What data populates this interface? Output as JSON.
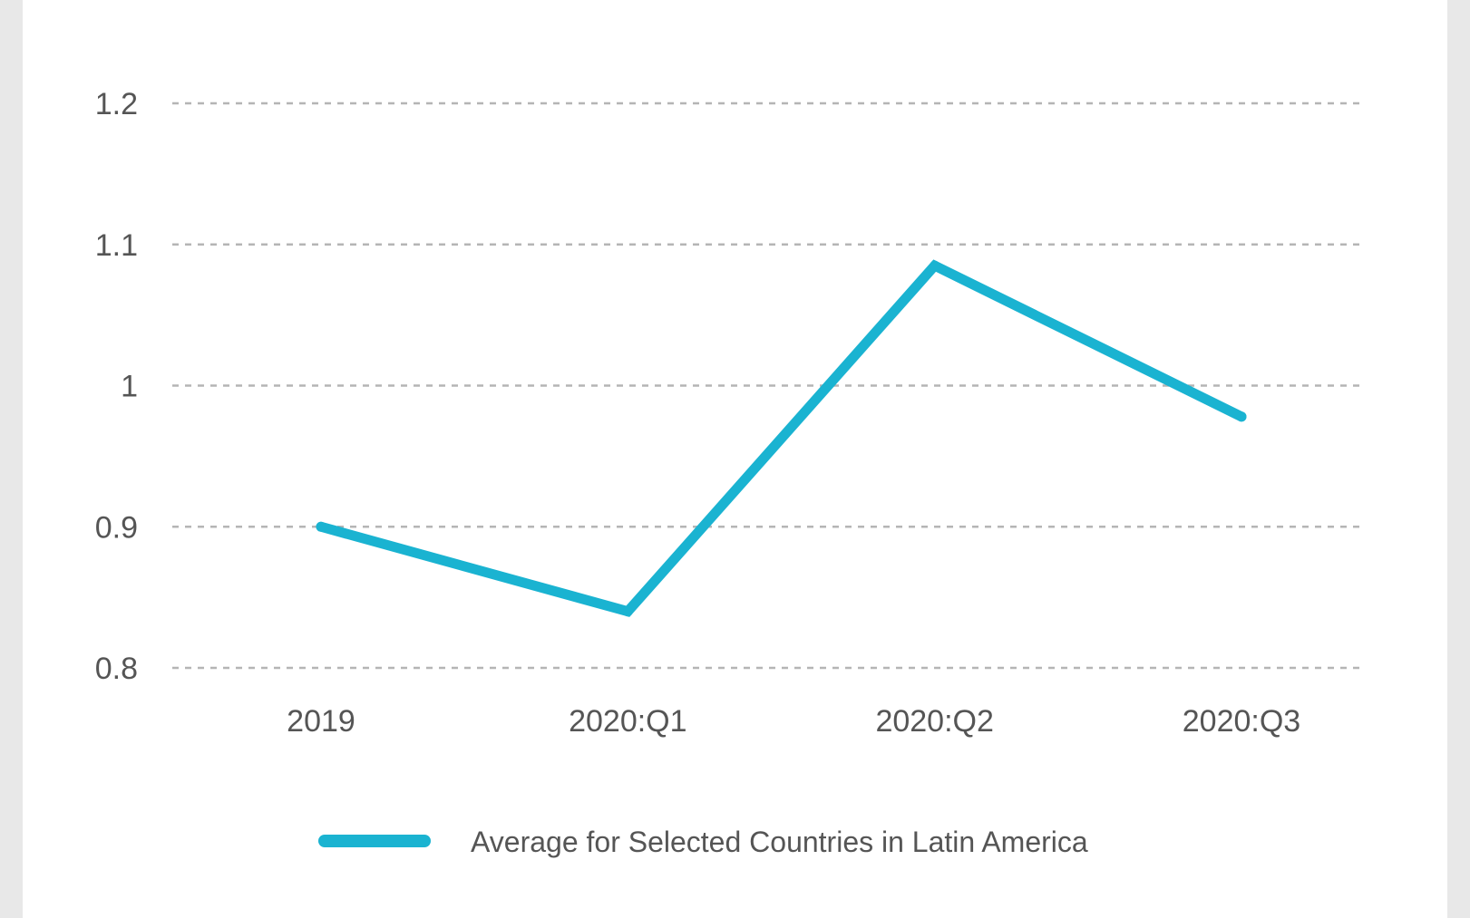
{
  "chart_data": {
    "type": "line",
    "title": "",
    "xlabel": "",
    "ylabel": "",
    "categories": [
      "2019",
      "2020:Q1",
      "2020:Q2",
      "2020:Q3"
    ],
    "yticks": [
      "0.8",
      "0.9",
      "1",
      "1.1",
      "1.2"
    ],
    "ylim": [
      0.8,
      1.2
    ],
    "grid": "horizontal-dashed",
    "legend_position": "bottom-center",
    "series": [
      {
        "name": "Average for Selected Countries in Latin America",
        "values": [
          0.9,
          0.84,
          1.085,
          0.978
        ],
        "color": "#1ab3d1"
      }
    ]
  },
  "colors": {
    "background": "#ffffff",
    "frame": "#e8e8e8",
    "grid": "#b5b5b5",
    "text": "#555555"
  }
}
